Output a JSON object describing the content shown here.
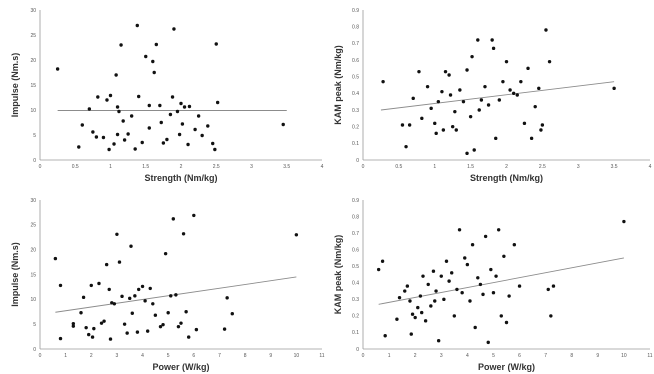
{
  "chart_data": [
    {
      "type": "scatter",
      "title": "",
      "xlabel": "Strength (Nm/kg)",
      "ylabel": "Impulse (Nm.s)",
      "xlim": [
        0,
        4
      ],
      "ylim": [
        0,
        30
      ],
      "xticks": [
        "0",
        "0.5",
        "1",
        "1.5",
        "2",
        "2.5",
        "3",
        "3.5",
        "4"
      ],
      "yticks": [
        "0",
        "5",
        "10",
        "15",
        "20",
        "25",
        "30"
      ],
      "trendline": {
        "x": [
          0.25,
          3.5
        ],
        "y": [
          9.9,
          9.9
        ]
      },
      "grid": false,
      "points": [
        [
          0.25,
          18.2
        ],
        [
          0.55,
          2.6
        ],
        [
          0.6,
          7.0
        ],
        [
          0.7,
          10.2
        ],
        [
          0.75,
          5.6
        ],
        [
          0.8,
          4.6
        ],
        [
          0.82,
          12.6
        ],
        [
          0.9,
          4.5
        ],
        [
          0.95,
          12.0
        ],
        [
          0.98,
          2.1
        ],
        [
          1.0,
          12.9
        ],
        [
          1.05,
          3.2
        ],
        [
          1.08,
          17.0
        ],
        [
          1.1,
          10.6
        ],
        [
          1.1,
          5.1
        ],
        [
          1.12,
          9.7
        ],
        [
          1.15,
          23.0
        ],
        [
          1.18,
          7.8
        ],
        [
          1.2,
          4.0
        ],
        [
          1.25,
          5.2
        ],
        [
          1.3,
          8.8
        ],
        [
          1.35,
          2.2
        ],
        [
          1.38,
          26.9
        ],
        [
          1.4,
          12.7
        ],
        [
          1.45,
          3.5
        ],
        [
          1.5,
          20.7
        ],
        [
          1.55,
          10.9
        ],
        [
          1.55,
          6.4
        ],
        [
          1.6,
          19.7
        ],
        [
          1.62,
          17.5
        ],
        [
          1.65,
          23.1
        ],
        [
          1.7,
          10.9
        ],
        [
          1.72,
          7.5
        ],
        [
          1.75,
          3.4
        ],
        [
          1.8,
          4.1
        ],
        [
          1.85,
          9.1
        ],
        [
          1.88,
          12.6
        ],
        [
          1.9,
          26.2
        ],
        [
          1.95,
          9.7
        ],
        [
          1.98,
          5.1
        ],
        [
          2.0,
          11.3
        ],
        [
          2.02,
          7.2
        ],
        [
          2.05,
          10.6
        ],
        [
          2.1,
          3.1
        ],
        [
          2.12,
          10.7
        ],
        [
          2.2,
          6.1
        ],
        [
          2.25,
          8.8
        ],
        [
          2.3,
          4.9
        ],
        [
          2.38,
          6.8
        ],
        [
          2.45,
          3.3
        ],
        [
          2.48,
          2.1
        ],
        [
          2.5,
          23.2
        ],
        [
          2.52,
          11.5
        ],
        [
          3.45,
          7.1
        ]
      ]
    },
    {
      "type": "scatter",
      "title": "",
      "xlabel": "Strength (Nm/kg)",
      "ylabel": "KAM peak (Nm/kg)",
      "xlim": [
        0,
        4
      ],
      "ylim": [
        0,
        0.9
      ],
      "xticks": [
        "0",
        "0.5",
        "1",
        "1.5",
        "2",
        "2.5",
        "3",
        "3.5",
        "4"
      ],
      "yticks": [
        "0",
        "0.1",
        "0.2",
        "0.3",
        "0.4",
        "0.5",
        "0.6",
        "0.7",
        "0.8",
        "0.9"
      ],
      "trendline": {
        "x": [
          0.25,
          3.5
        ],
        "y": [
          0.3,
          0.47
        ]
      },
      "grid": false,
      "points": [
        [
          0.28,
          0.47
        ],
        [
          0.55,
          0.21
        ],
        [
          0.6,
          0.08
        ],
        [
          0.65,
          0.21
        ],
        [
          0.7,
          0.37
        ],
        [
          0.78,
          0.53
        ],
        [
          0.82,
          0.25
        ],
        [
          0.9,
          0.44
        ],
        [
          0.95,
          0.31
        ],
        [
          1.0,
          0.22
        ],
        [
          1.02,
          0.16
        ],
        [
          1.05,
          0.35
        ],
        [
          1.1,
          0.41
        ],
        [
          1.12,
          0.18
        ],
        [
          1.15,
          0.53
        ],
        [
          1.2,
          0.51
        ],
        [
          1.22,
          0.39
        ],
        [
          1.25,
          0.2
        ],
        [
          1.28,
          0.29
        ],
        [
          1.3,
          0.18
        ],
        [
          1.35,
          0.42
        ],
        [
          1.4,
          0.35
        ],
        [
          1.45,
          0.54
        ],
        [
          1.45,
          0.04
        ],
        [
          1.5,
          0.26
        ],
        [
          1.52,
          0.62
        ],
        [
          1.55,
          0.06
        ],
        [
          1.6,
          0.72
        ],
        [
          1.62,
          0.3
        ],
        [
          1.65,
          0.36
        ],
        [
          1.7,
          0.44
        ],
        [
          1.75,
          0.33
        ],
        [
          1.8,
          0.72
        ],
        [
          1.82,
          0.67
        ],
        [
          1.85,
          0.13
        ],
        [
          1.9,
          0.36
        ],
        [
          1.95,
          0.47
        ],
        [
          2.0,
          0.59
        ],
        [
          2.05,
          0.42
        ],
        [
          2.1,
          0.4
        ],
        [
          2.15,
          0.39
        ],
        [
          2.2,
          0.47
        ],
        [
          2.25,
          0.22
        ],
        [
          2.3,
          0.55
        ],
        [
          2.35,
          0.13
        ],
        [
          2.4,
          0.32
        ],
        [
          2.45,
          0.43
        ],
        [
          2.48,
          0.18
        ],
        [
          2.5,
          0.21
        ],
        [
          2.55,
          0.78
        ],
        [
          2.6,
          0.59
        ],
        [
          3.5,
          0.43
        ]
      ]
    },
    {
      "type": "scatter",
      "title": "",
      "xlabel": "Power (W/kg)",
      "ylabel": "Impulse (Nm.s)",
      "xlim": [
        0,
        11
      ],
      "ylim": [
        0,
        30
      ],
      "xticks": [
        "0",
        "1",
        "2",
        "3",
        "4",
        "5",
        "6",
        "7",
        "8",
        "9",
        "10",
        "11"
      ],
      "yticks": [
        "0",
        "5",
        "10",
        "15",
        "20",
        "25",
        "30"
      ],
      "trendline": {
        "x": [
          0.6,
          10.0
        ],
        "y": [
          7.4,
          14.5
        ]
      },
      "grid": false,
      "points": [
        [
          0.6,
          18.2
        ],
        [
          0.8,
          12.8
        ],
        [
          0.8,
          2.1
        ],
        [
          1.3,
          5.1
        ],
        [
          1.3,
          4.6
        ],
        [
          1.6,
          7.3
        ],
        [
          1.7,
          10.4
        ],
        [
          1.8,
          4.3
        ],
        [
          1.9,
          2.9
        ],
        [
          2.0,
          12.8
        ],
        [
          2.05,
          2.4
        ],
        [
          2.1,
          4.1
        ],
        [
          2.3,
          13.2
        ],
        [
          2.4,
          5.2
        ],
        [
          2.5,
          5.6
        ],
        [
          2.6,
          17.0
        ],
        [
          2.7,
          12.0
        ],
        [
          2.75,
          2.0
        ],
        [
          2.8,
          9.3
        ],
        [
          2.9,
          9.1
        ],
        [
          3.0,
          23.1
        ],
        [
          3.1,
          17.5
        ],
        [
          3.2,
          10.6
        ],
        [
          3.3,
          5.0
        ],
        [
          3.4,
          3.2
        ],
        [
          3.5,
          10.2
        ],
        [
          3.55,
          20.7
        ],
        [
          3.6,
          7.2
        ],
        [
          3.7,
          10.7
        ],
        [
          3.8,
          3.4
        ],
        [
          3.85,
          12.0
        ],
        [
          4.0,
          12.6
        ],
        [
          4.1,
          9.7
        ],
        [
          4.2,
          3.6
        ],
        [
          4.3,
          12.2
        ],
        [
          4.4,
          9.1
        ],
        [
          4.5,
          6.8
        ],
        [
          4.7,
          4.5
        ],
        [
          4.8,
          4.9
        ],
        [
          4.9,
          19.2
        ],
        [
          5.0,
          7.3
        ],
        [
          5.1,
          10.7
        ],
        [
          5.2,
          26.2
        ],
        [
          5.3,
          10.9
        ],
        [
          5.4,
          4.5
        ],
        [
          5.5,
          5.2
        ],
        [
          5.6,
          23.2
        ],
        [
          5.7,
          7.5
        ],
        [
          5.8,
          2.4
        ],
        [
          6.0,
          26.9
        ],
        [
          6.1,
          3.9
        ],
        [
          7.2,
          4.0
        ],
        [
          7.3,
          10.3
        ],
        [
          7.5,
          7.1
        ],
        [
          10.0,
          23.0
        ]
      ]
    },
    {
      "type": "scatter",
      "title": "",
      "xlabel": "Power (W/kg)",
      "ylabel": "KAM peak (Nm/kg)",
      "xlim": [
        0,
        11
      ],
      "ylim": [
        0,
        0.9
      ],
      "xticks": [
        "0",
        "1",
        "2",
        "3",
        "4",
        "5",
        "6",
        "7",
        "8",
        "9",
        "10",
        "11"
      ],
      "yticks": [
        "0",
        "0.1",
        "0.2",
        "0.3",
        "0.4",
        "0.5",
        "0.6",
        "0.7",
        "0.8",
        "0.9"
      ],
      "trendline": {
        "x": [
          0.6,
          10.0
        ],
        "y": [
          0.27,
          0.55
        ]
      },
      "grid": false,
      "points": [
        [
          0.6,
          0.48
        ],
        [
          0.75,
          0.53
        ],
        [
          0.85,
          0.08
        ],
        [
          1.3,
          0.18
        ],
        [
          1.4,
          0.31
        ],
        [
          1.6,
          0.35
        ],
        [
          1.7,
          0.38
        ],
        [
          1.8,
          0.29
        ],
        [
          1.85,
          0.09
        ],
        [
          1.9,
          0.21
        ],
        [
          2.0,
          0.19
        ],
        [
          2.1,
          0.25
        ],
        [
          2.2,
          0.32
        ],
        [
          2.25,
          0.22
        ],
        [
          2.3,
          0.44
        ],
        [
          2.4,
          0.17
        ],
        [
          2.5,
          0.39
        ],
        [
          2.6,
          0.26
        ],
        [
          2.7,
          0.47
        ],
        [
          2.75,
          0.29
        ],
        [
          2.8,
          0.35
        ],
        [
          2.9,
          0.05
        ],
        [
          3.0,
          0.44
        ],
        [
          3.1,
          0.3
        ],
        [
          3.2,
          0.53
        ],
        [
          3.3,
          0.41
        ],
        [
          3.4,
          0.46
        ],
        [
          3.5,
          0.2
        ],
        [
          3.6,
          0.36
        ],
        [
          3.7,
          0.72
        ],
        [
          3.8,
          0.34
        ],
        [
          3.9,
          0.55
        ],
        [
          4.0,
          0.51
        ],
        [
          4.1,
          0.29
        ],
        [
          4.2,
          0.63
        ],
        [
          4.3,
          0.13
        ],
        [
          4.4,
          0.43
        ],
        [
          4.5,
          0.39
        ],
        [
          4.6,
          0.33
        ],
        [
          4.7,
          0.68
        ],
        [
          4.8,
          0.04
        ],
        [
          4.9,
          0.48
        ],
        [
          5.0,
          0.34
        ],
        [
          5.1,
          0.44
        ],
        [
          5.2,
          0.72
        ],
        [
          5.3,
          0.2
        ],
        [
          5.4,
          0.56
        ],
        [
          5.5,
          0.16
        ],
        [
          5.6,
          0.32
        ],
        [
          5.8,
          0.63
        ],
        [
          6.0,
          0.38
        ],
        [
          7.1,
          0.36
        ],
        [
          7.2,
          0.2
        ],
        [
          7.3,
          0.38
        ],
        [
          10.0,
          0.77
        ]
      ]
    }
  ]
}
